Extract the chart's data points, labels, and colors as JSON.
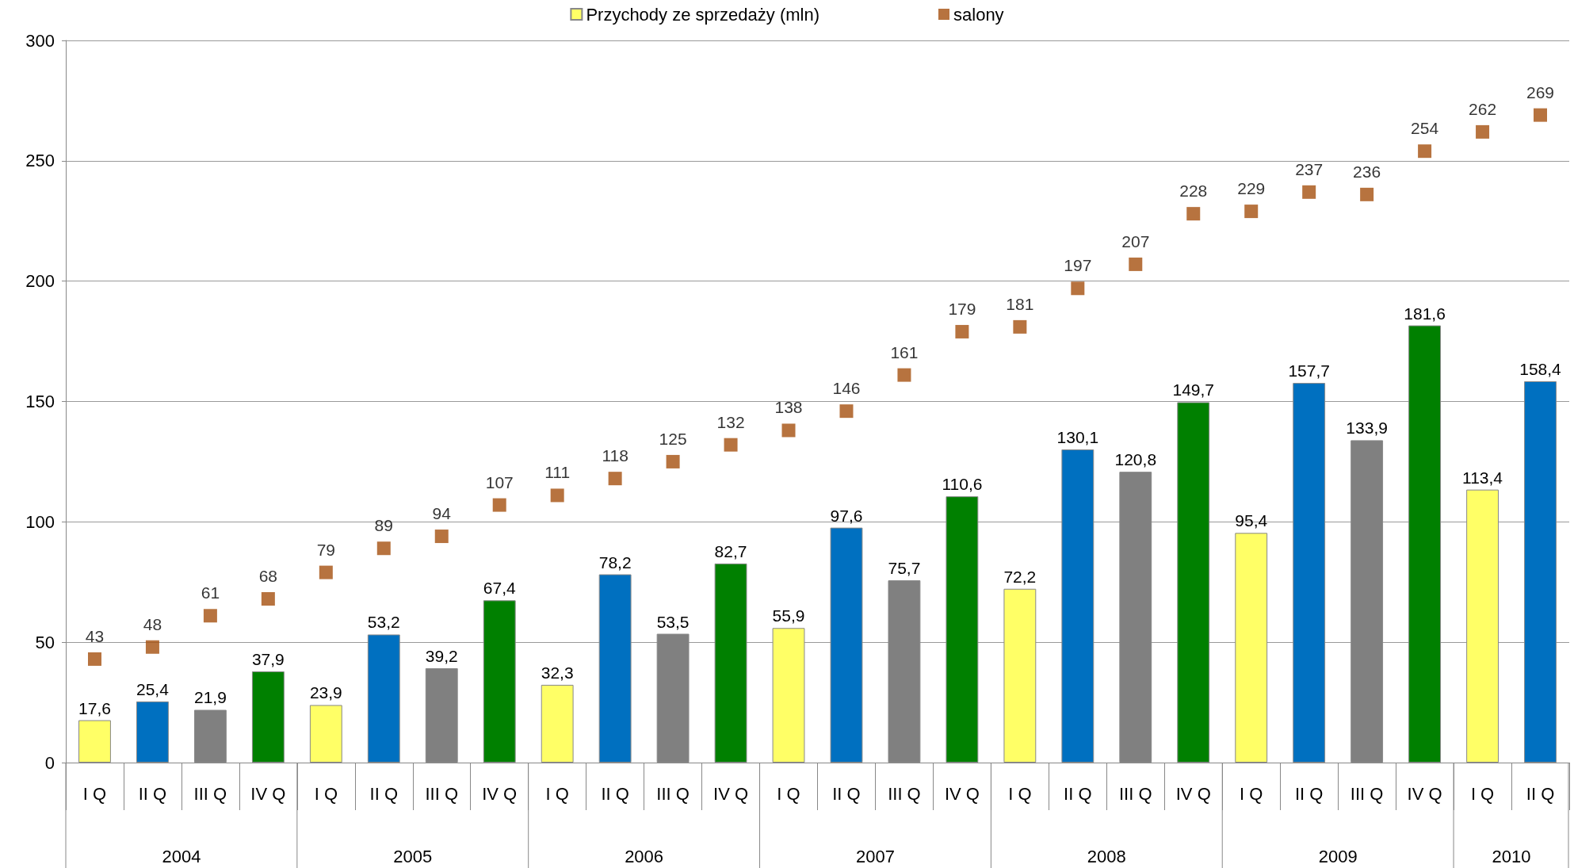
{
  "chart_data": {
    "type": "bar",
    "categories": [
      "I Q",
      "II Q",
      "III Q",
      "IV Q",
      "I Q",
      "II Q",
      "III Q",
      "IV Q",
      "I Q",
      "II Q",
      "III Q",
      "IV Q",
      "I Q",
      "II Q",
      "III Q",
      "IV Q",
      "I Q",
      "II Q",
      "III Q",
      "IV Q",
      "I Q",
      "II Q",
      "III Q",
      "IV Q",
      "I Q",
      "II Q"
    ],
    "series": [
      {
        "name": "Przychody ze sprzedaży (mln)",
        "color": "#ffff66",
        "colors": [
          "#ffff66",
          "#0070c0",
          "#808080",
          "#008000",
          "#ffff66",
          "#0070c0",
          "#808080",
          "#008000",
          "#ffff66",
          "#0070c0",
          "#808080",
          "#008000",
          "#ffff66",
          "#0070c0",
          "#808080",
          "#008000",
          "#ffff66",
          "#0070c0",
          "#808080",
          "#008000",
          "#ffff66",
          "#0070c0",
          "#808080",
          "#008000",
          "#ffff66",
          "#0070c0"
        ],
        "values": [
          17.6,
          25.4,
          21.9,
          37.9,
          23.9,
          53.2,
          39.2,
          67.4,
          32.3,
          78.2,
          53.5,
          82.7,
          55.9,
          97.6,
          75.7,
          110.6,
          72.2,
          130.1,
          120.8,
          149.7,
          95.4,
          157.7,
          133.9,
          181.6,
          113.4,
          158.4
        ],
        "value_labels": [
          "17,6",
          "25,4",
          "21,9",
          "37,9",
          "23,9",
          "53,2",
          "39,2",
          "67,4",
          "32,3",
          "78,2",
          "53,5",
          "82,7",
          "55,9",
          "97,6",
          "75,7",
          "110,6",
          "72,2",
          "130,1",
          "120,8",
          "149,7",
          "95,4",
          "157,7",
          "133,9",
          "181,6",
          "113,4",
          "158,4"
        ]
      },
      {
        "name": "salony",
        "type": "scatter",
        "color": "#a5500f",
        "marker": "square",
        "values": [
          43,
          48,
          61,
          68,
          79,
          89,
          94,
          107,
          111,
          118,
          125,
          132,
          138,
          146,
          161,
          179,
          181,
          197,
          207,
          228,
          229,
          237,
          236,
          254,
          262,
          269
        ],
        "value_labels": [
          "43",
          "48",
          "61",
          "68",
          "79",
          "89",
          "94",
          "107",
          "111",
          "118",
          "125",
          "132",
          "138",
          "146",
          "161",
          "179",
          "181",
          "197",
          "207",
          "228",
          "229",
          "237",
          "236",
          "254",
          "262",
          "269"
        ]
      }
    ],
    "annotations": [
      "2004",
      "2005",
      "2006",
      "2007",
      "2008",
      "2009",
      "2010"
    ],
    "ylim": [
      0,
      300
    ],
    "yticks": [
      0,
      50,
      100,
      150,
      200,
      250,
      300
    ],
    "grid": "y",
    "legend": "top"
  }
}
